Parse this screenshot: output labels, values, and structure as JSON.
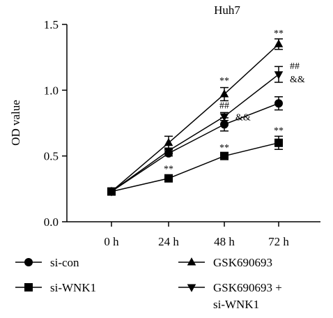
{
  "chart_data": {
    "type": "line",
    "title": "Huh7",
    "xlabel": "",
    "ylabel": "OD value",
    "categories": [
      "0 h",
      "24 h",
      "48 h",
      "72 h"
    ],
    "ylim": [
      0,
      1.5
    ],
    "yticks": [
      "0.0",
      "0.5",
      "1.0",
      "1.5"
    ],
    "legend_position": "bottom",
    "series": [
      {
        "name": "si-con",
        "marker": "circle",
        "values": [
          0.23,
          0.52,
          0.74,
          0.9
        ],
        "errors": [
          0,
          0.02,
          0.05,
          0.05
        ]
      },
      {
        "name": "si-WNK1",
        "marker": "square",
        "values": [
          0.23,
          0.33,
          0.5,
          0.6
        ],
        "errors": [
          0,
          0.02,
          0.02,
          0.05
        ]
      },
      {
        "name": "GSK690693",
        "marker": "triangle-up",
        "values": [
          0.23,
          0.6,
          0.97,
          1.35
        ],
        "errors": [
          0,
          0.05,
          0.05,
          0.04
        ]
      },
      {
        "name": "GSK690693 + si-WNK1",
        "legend_lines": [
          "GSK690693 +",
          "si-WNK1"
        ],
        "marker": "triangle-down",
        "values": [
          0.23,
          0.54,
          0.8,
          1.12
        ],
        "errors": [
          0,
          0.02,
          0.03,
          0.06
        ]
      }
    ],
    "annotations": [
      {
        "text": "**",
        "category": "24 h",
        "y": 0.38
      },
      {
        "text": "**",
        "category": "48 h",
        "y": 1.05
      },
      {
        "text": "##",
        "category": "48 h",
        "y": 0.86
      },
      {
        "text": "&&",
        "category": "48 h",
        "y": 0.77,
        "side": "right"
      },
      {
        "text": "**",
        "category": "48 h",
        "y": 0.54
      },
      {
        "text": "**",
        "category": "72 h",
        "y": 1.41
      },
      {
        "text": "##",
        "category": "72 h",
        "y": 1.16,
        "side": "right"
      },
      {
        "text": "&&",
        "category": "72 h",
        "y": 1.06,
        "side": "right"
      },
      {
        "text": "**",
        "category": "72 h",
        "y": 0.67
      }
    ],
    "colors": {
      "line": "#000000",
      "background": "#ffffff"
    }
  }
}
